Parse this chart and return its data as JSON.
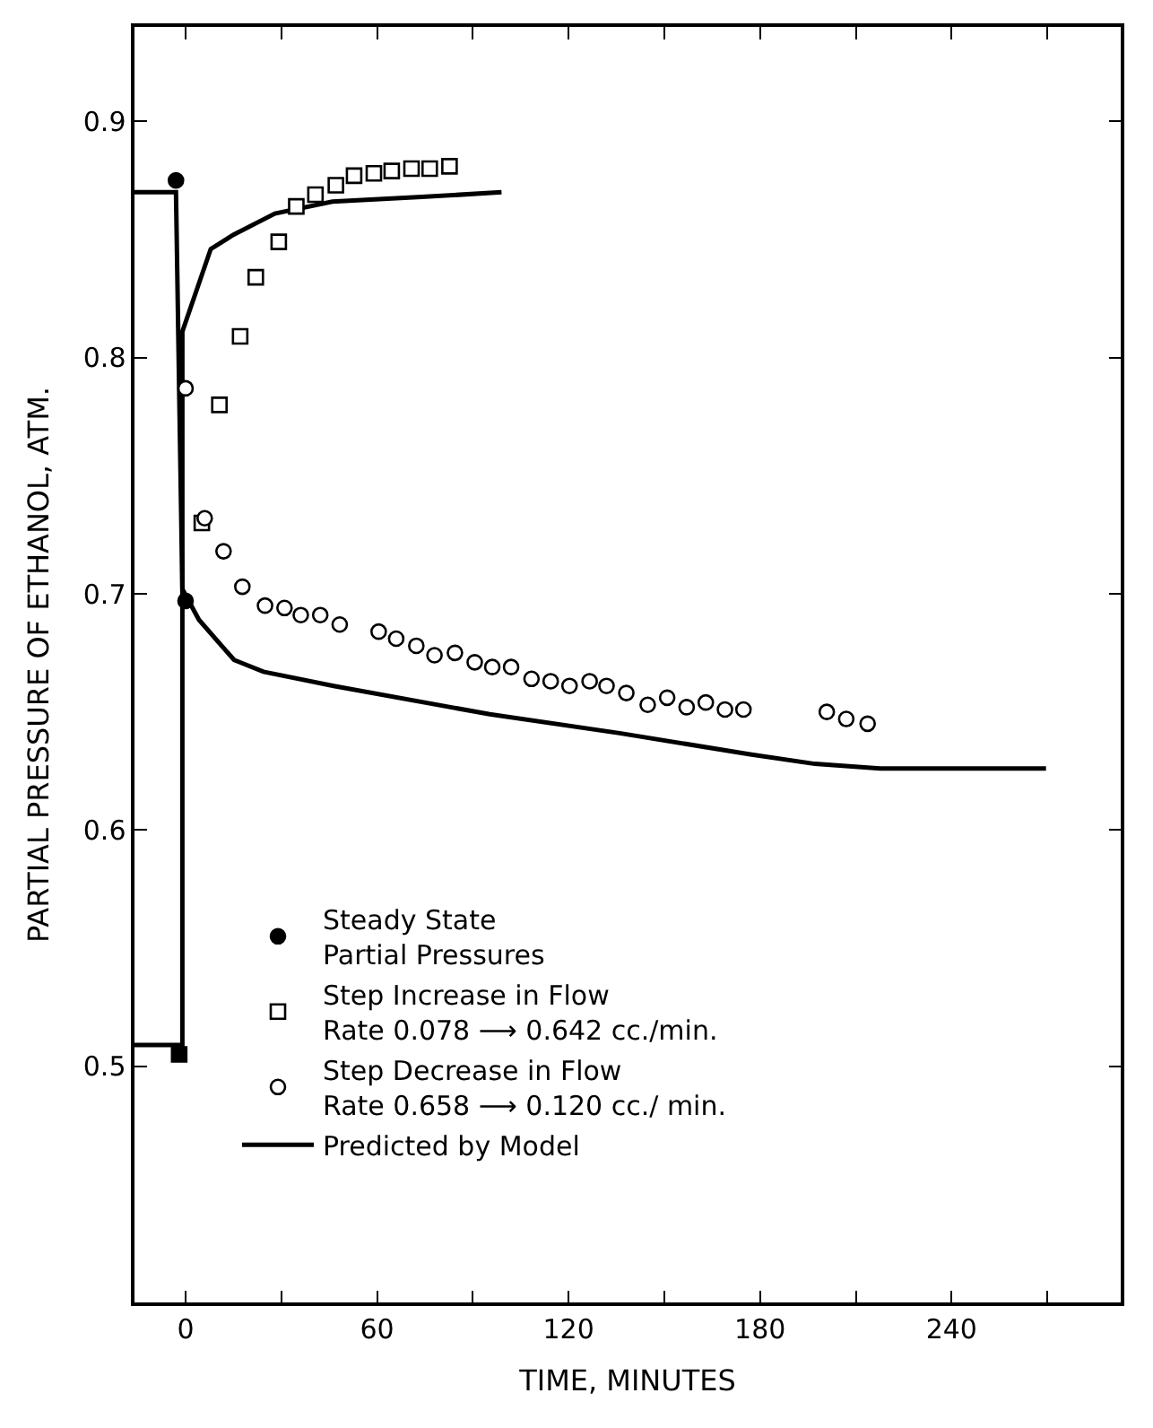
{
  "chart_data": {
    "type": "scatter",
    "xlabel": "TIME, MINUTES",
    "ylabel": "PARTIAL PRESSURE OF ETHANOL, ATM.",
    "xlim": [
      -16,
      293
    ],
    "ylim": [
      0.4,
      0.94
    ],
    "xticks": [
      0,
      {
        "value": 30,
        "label": null
      },
      60,
      {
        "value": 90,
        "label": null
      },
      120,
      {
        "value": 150,
        "label": null
      },
      180,
      {
        "value": 210,
        "label": null
      },
      240,
      {
        "value": 270,
        "label": null
      }
    ],
    "yticks": [
      {
        "value": 0.5,
        "label": "0.5"
      },
      {
        "value": 0.6,
        "label": "0.6"
      },
      {
        "value": 0.7,
        "label": "0.7"
      },
      {
        "value": 0.8,
        "label": "0.8"
      },
      {
        "value": 0.9,
        "label": "0.9"
      }
    ],
    "legend": "bottom left",
    "series": [
      {
        "name": "Steady State\nPartial Pressures",
        "color": "#000000",
        "marker": "circle",
        "x": [
          -3,
          0
        ],
        "values": [
          0.875,
          0.697
        ]
      },
      {
        "color": "#000000",
        "marker": "square",
        "x": [
          -2
        ],
        "values": [
          0.505
        ]
      },
      {
        "name": "Step Increase in Flow\nRate 0.078 ⟶ 0.642 cc./min.",
        "color": "#ffffff",
        "marker": "square",
        "x": [
          5.1,
          10.6,
          17.1,
          22,
          29.2,
          34.7,
          40.7,
          47.1,
          52.8,
          59,
          64.6,
          70.8,
          76.5,
          82.7
        ],
        "values": [
          0.73,
          0.78,
          0.809,
          0.834,
          0.849,
          0.864,
          0.869,
          0.873,
          0.877,
          0.878,
          0.879,
          0.88,
          0.88,
          0.881
        ]
      },
      {
        "name": "Step Decrease in Flow\nRate 0.658 ⟶ 0.120 cc./ min.",
        "color": "#ffffff",
        "marker": "circle",
        "x": [
          0,
          6,
          11.9,
          17.8,
          24.9,
          31,
          36.1,
          42.2,
          48.3,
          60.5,
          66,
          72.3,
          78,
          84.4,
          90.6,
          96.1,
          102,
          108.4,
          114.4,
          120.3,
          126.6,
          131.9,
          138.1,
          144.8,
          150.9,
          157,
          163,
          169,
          174.8,
          200.9,
          207,
          213.7
        ],
        "values": [
          0.787,
          0.732,
          0.718,
          0.703,
          0.695,
          0.694,
          0.691,
          0.691,
          0.687,
          0.684,
          0.681,
          0.678,
          0.674,
          0.675,
          0.671,
          0.669,
          0.669,
          0.664,
          0.663,
          0.661,
          0.663,
          0.661,
          0.658,
          0.653,
          0.656,
          0.652,
          0.654,
          0.651,
          0.651,
          0.65,
          0.647,
          0.645
        ]
      },
      {
        "type": "line",
        "name": "Predicted by Model",
        "color": "#000000",
        "line_style": "solid",
        "x": [
          -16,
          -1,
          -1,
          7.9,
          15,
          28,
          46,
          74,
          99
        ],
        "values": [
          0.509,
          0.509,
          0.811,
          0.846,
          0.852,
          0.861,
          0.866,
          0.868,
          0.87
        ]
      },
      {
        "type": "line",
        "color": "#000000",
        "line_style": "solid",
        "x": [
          -16,
          -3,
          -1,
          4.2,
          15.2,
          24.4,
          46.4,
          83,
          95.3,
          136,
          176.9,
          197.2,
          217.6,
          269.6
        ],
        "values": [
          0.87,
          0.87,
          0.702,
          0.689,
          0.672,
          0.667,
          0.661,
          0.652,
          0.649,
          0.641,
          0.632,
          0.628,
          0.626,
          0.626
        ]
      }
    ]
  }
}
